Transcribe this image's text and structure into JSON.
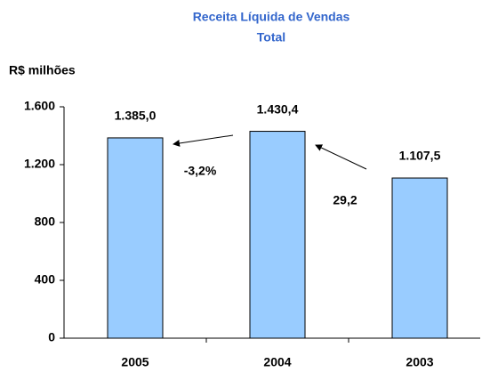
{
  "chart_data": {
    "type": "bar",
    "title": "Receita Líquida de Vendas",
    "subtitle": "Total",
    "y_axis_label": "R$ milhões",
    "categories": [
      "2005",
      "2004",
      "2003"
    ],
    "values": [
      1385.0,
      1430.4,
      1107.5
    ],
    "value_labels": [
      "1.385,0",
      "1.430,4",
      "1.107,5"
    ],
    "color": "#99ccff",
    "ylim": [
      0,
      1600
    ],
    "yticks": [
      0,
      400,
      800,
      {
        "value": 1200,
        "label": "1.200"
      },
      {
        "value": 1600,
        "label": "1.600"
      }
    ],
    "annotations": [
      "-3,2%",
      "29,2"
    ]
  }
}
